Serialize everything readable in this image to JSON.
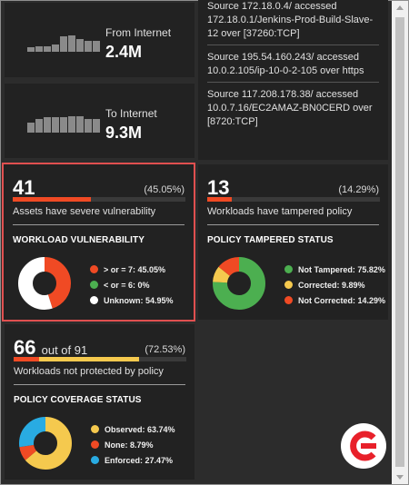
{
  "traffic": {
    "from_internet": {
      "label": "From Internet",
      "value": "2.4M",
      "bar_levels": [
        0.15,
        0.2,
        0.2,
        0.25,
        0.55,
        0.6,
        0.45,
        0.4,
        0.4
      ]
    },
    "to_internet": {
      "label": "To Internet",
      "value": "9.3M",
      "bar_levels": [
        0.35,
        0.5,
        0.55,
        0.55,
        0.55,
        0.6,
        0.6,
        0.5,
        0.5
      ]
    }
  },
  "events": [
    {
      "text": "Source 172.18.0.4/ accessed 172.18.0.1/Jenkins-Prod-Build-Slave-12 over [37260:TCP]"
    },
    {
      "text": "Source 195.54.160.243/ accessed 10.0.2.105/ip-10-0-2-105 over https"
    },
    {
      "text": "Source 117.208.178.38/ accessed 10.0.7.16/EC2AMAZ-BN0CERD over [8720:TCP]"
    }
  ],
  "workload_vulnerability": {
    "count": "41",
    "percent_text": "(45.05%)",
    "fill_fraction": 0.4505,
    "fill_color": "#f04a24",
    "description": "Assets have severe vulnerability",
    "title": "WORKLOAD VULNERABILITY",
    "legend": [
      {
        "label": "> or = 7: 45.05%",
        "color": "#f04a24",
        "value": 45.05
      },
      {
        "label": "< or = 6: 0%",
        "color": "#4caf50",
        "value": 0
      },
      {
        "label": "Unknown: 54.95%",
        "color": "#ffffff",
        "value": 54.95
      }
    ]
  },
  "policy_tampered": {
    "count": "13",
    "percent_text": "(14.29%)",
    "fill_fraction": 0.1429,
    "fill_color": "#f04a24",
    "description": "Workloads have tampered policy",
    "title": "POLICY TAMPERED STATUS",
    "legend": [
      {
        "label": "Not Tampered: 75.82%",
        "color": "#4caf50",
        "value": 75.82
      },
      {
        "label": "Corrected: 9.89%",
        "color": "#f5c94e",
        "value": 9.89
      },
      {
        "label": "Not Corrected: 14.29%",
        "color": "#f04a24",
        "value": 14.29
      }
    ]
  },
  "policy_coverage": {
    "count": "66",
    "count_suffix": "out of 91",
    "percent_text": "(72.53%)",
    "fill_fraction": 0.7253,
    "fill_color": "#f5c94e",
    "fill_accent": "#f04a24",
    "description": "Workloads not protected by policy",
    "title": "POLICY COVERAGE STATUS",
    "legend": [
      {
        "label": "Observed: 63.74%",
        "color": "#f5c94e",
        "value": 63.74
      },
      {
        "label": "None: 8.79%",
        "color": "#f04a24",
        "value": 8.79
      },
      {
        "label": "Enforced: 27.47%",
        "color": "#29abe2",
        "value": 27.47
      }
    ]
  },
  "logo": {
    "icon": "brand-logo-icon",
    "color": "#e8202a"
  }
}
